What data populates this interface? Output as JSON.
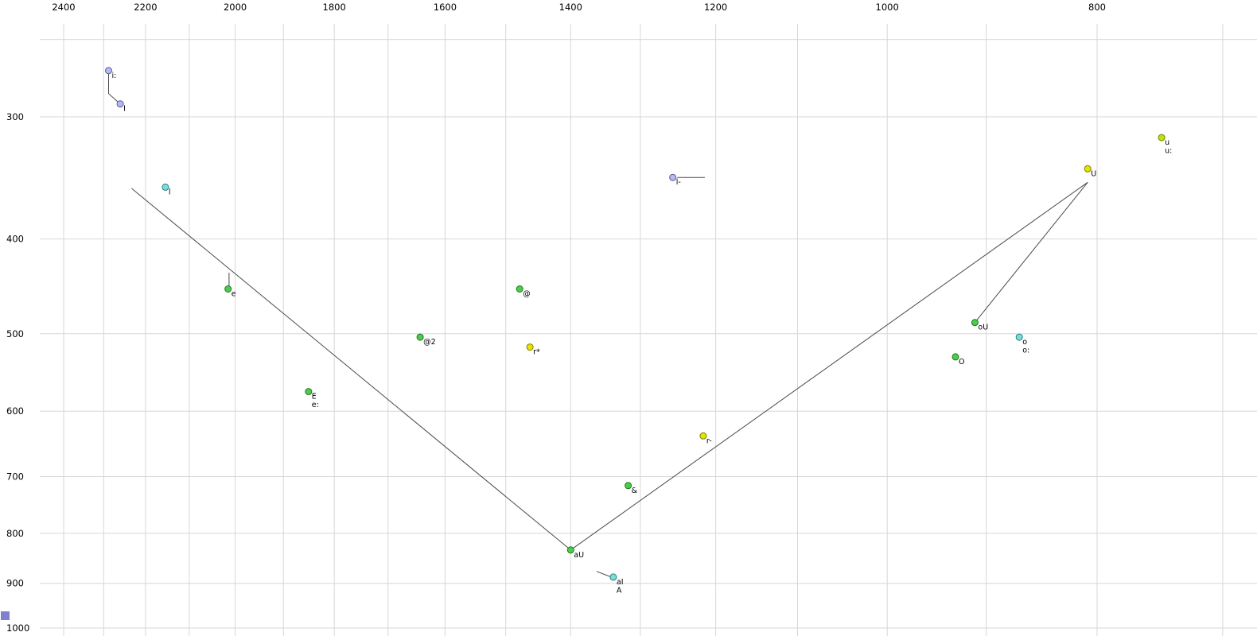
{
  "chart_data": {
    "type": "scatter",
    "title": "",
    "description": "Vowel formant plot: F2 (Hz) on horizontal axis reversed log scale, F1 (Hz) on vertical axis log scale increasing downward",
    "x_axis": {
      "tick_labels": [
        "2400",
        "2200",
        "2000",
        "1800",
        "1600",
        "1400",
        "1200",
        "1000",
        "800"
      ],
      "tick_values": [
        2400,
        2200,
        2000,
        1800,
        1600,
        1400,
        1200,
        1000,
        800
      ],
      "gridline_values": [
        2400,
        2300,
        2200,
        2100,
        2000,
        1900,
        1800,
        1700,
        1600,
        1500,
        1400,
        1300,
        1200,
        1100,
        1000,
        900,
        800,
        700
      ],
      "scale": "log",
      "reversed": true,
      "range": [
        2480,
        690
      ]
    },
    "y_axis": {
      "tick_labels": [
        "300",
        "400",
        "500",
        "600",
        "700",
        "800",
        "900",
        "1000"
      ],
      "tick_values": [
        300,
        400,
        500,
        600,
        700,
        800,
        900,
        1000
      ],
      "gridline_values": [
        250,
        300,
        400,
        500,
        600,
        700,
        800,
        900,
        1000
      ],
      "scale": "log",
      "reversed": false,
      "range": [
        240,
        1010
      ]
    },
    "points": [
      {
        "id": "i:",
        "labels": [
          "i:"
        ],
        "f2": 2288,
        "f1": 269,
        "category": "lavender"
      },
      {
        "id": "I",
        "labels": [
          "I"
        ],
        "f2": 2260,
        "f1": 291,
        "category": "lavender"
      },
      {
        "id": "l",
        "labels": [
          "l"
        ],
        "f2": 2154,
        "f1": 354,
        "category": "cyan"
      },
      {
        "id": "e",
        "labels": [
          "e"
        ],
        "f2": 2015,
        "f1": 450,
        "category": "green"
      },
      {
        "id": "@",
        "labels": [
          "@"
        ],
        "f2": 1478,
        "f1": 450,
        "category": "green"
      },
      {
        "id": "@2",
        "labels": [
          "@2"
        ],
        "f2": 1643,
        "f1": 504,
        "category": "green"
      },
      {
        "id": "r*",
        "labels": [
          "r*"
        ],
        "f2": 1462,
        "f1": 516,
        "category": "yellow"
      },
      {
        "id": "E",
        "labels": [
          "E",
          "e:"
        ],
        "f2": 1850,
        "f1": 573,
        "category": "green"
      },
      {
        "id": "r-",
        "labels": [
          "r-"
        ],
        "f2": 1216,
        "f1": 636,
        "category": "yellow"
      },
      {
        "id": "&",
        "labels": [
          "&"
        ],
        "f2": 1317,
        "f1": 715,
        "category": "green"
      },
      {
        "id": "aU",
        "labels": [
          "aU"
        ],
        "f2": 1400,
        "f1": 832,
        "category": "green"
      },
      {
        "id": "aI",
        "labels": [
          "aI",
          "A"
        ],
        "f2": 1338,
        "f1": 887,
        "category": "cyan"
      },
      {
        "id": "oU",
        "labels": [
          "oU"
        ],
        "f2": 911,
        "f1": 487,
        "category": "green"
      },
      {
        "id": "O",
        "labels": [
          "O"
        ],
        "f2": 930,
        "f1": 528,
        "category": "green"
      },
      {
        "id": "o:",
        "labels": [
          "o",
          "o:"
        ],
        "f2": 869,
        "f1": 504,
        "category": "cyan"
      },
      {
        "id": "U",
        "labels": [
          "U"
        ],
        "f2": 808,
        "f1": 339,
        "category": "yellow"
      },
      {
        "id": "u:",
        "labels": [
          "u",
          "u:"
        ],
        "f2": 747,
        "f1": 315,
        "category": "yellowgreen"
      },
      {
        "id": "l-",
        "labels": [
          "l-"
        ],
        "f2": 1256,
        "f1": 346,
        "category": "lavender"
      }
    ],
    "trajectories": [
      {
        "name": "front-diagonal",
        "points": [
          [
            2233,
            355
          ],
          [
            1400,
            832
          ]
        ]
      },
      {
        "name": "back-diagonal",
        "points": [
          [
            1400,
            832
          ],
          [
            808,
            350
          ]
        ]
      },
      {
        "name": "u-to-oU",
        "points": [
          [
            808,
            350
          ],
          [
            911,
            487
          ]
        ]
      },
      {
        "name": "i-glide",
        "points": [
          [
            2288,
            271
          ],
          [
            2288,
            284
          ],
          [
            2264,
            290
          ]
        ]
      },
      {
        "name": "l-bar-whisker",
        "points": [
          [
            1250,
            346
          ],
          [
            1214,
            346
          ]
        ]
      },
      {
        "name": "e-tick",
        "points": [
          [
            2013,
            433
          ],
          [
            2013,
            448
          ]
        ]
      },
      {
        "name": "aI-tick",
        "points": [
          [
            1362,
            875
          ],
          [
            1339,
            888
          ]
        ]
      }
    ],
    "palette": {
      "lavender": {
        "fill": "#b9b9ec",
        "stroke": "#5858aa"
      },
      "cyan": {
        "fill": "#7fdbdb",
        "stroke": "#1f8080"
      },
      "green": {
        "fill": "#4ecb4e",
        "stroke": "#1a7a1a"
      },
      "yellow": {
        "fill": "#e4e400",
        "stroke": "#7f7f00"
      },
      "yellowgreen": {
        "fill": "#bce300",
        "stroke": "#6f8700"
      },
      "gridline": "#d7d7d7",
      "trajectory": "#4a4a4a",
      "axis_text": "#000000",
      "point_label_text": "#000000",
      "background": "#ffffff"
    }
  },
  "ui": {
    "corner_marker_color": "#8080cf"
  }
}
